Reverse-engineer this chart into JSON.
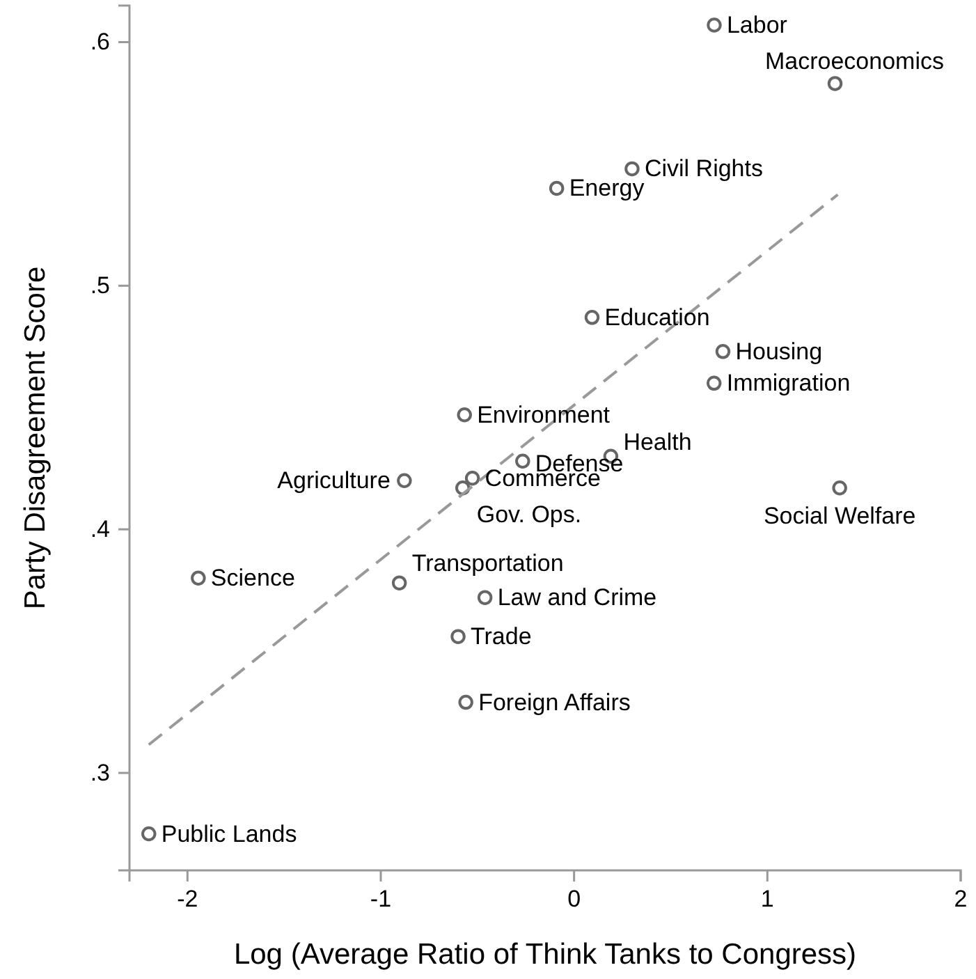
{
  "chart_data": {
    "type": "scatter",
    "xlabel": "Log (Average Ratio of Think Tanks to Congress)",
    "ylabel": "Party Disagreement Score",
    "xlim": [
      -2.3,
      2
    ],
    "ylim": [
      0.26,
      0.615
    ],
    "xticks": [
      -2,
      -1,
      0,
      1,
      2
    ],
    "yticks": [
      {
        "value": 0.3,
        "label": ".3"
      },
      {
        "value": 0.4,
        "label": ".4"
      },
      {
        "value": 0.5,
        "label": ".5"
      },
      {
        "value": 0.6,
        "label": ".6"
      }
    ],
    "grid": false,
    "series": [
      {
        "color": "#666666",
        "marker": "circle",
        "x": [
          0.725,
          1.35,
          0.3,
          -0.09,
          0.093,
          0.77,
          0.724,
          -0.567,
          0.19,
          -0.266,
          -0.526,
          -0.576,
          -0.878,
          1.374,
          -1.944,
          -0.904,
          -0.461,
          -0.6,
          -0.56,
          -2.2
        ],
        "values": [
          0.607,
          0.583,
          0.548,
          0.54,
          0.487,
          0.473,
          0.46,
          0.447,
          0.43,
          0.428,
          0.421,
          0.417,
          0.42,
          0.417,
          0.38,
          0.378,
          0.372,
          0.356,
          0.329,
          0.275
        ]
      },
      {
        "type": "line",
        "color": "#999999",
        "line_style": "dashed",
        "x": [
          -2.2,
          1.364
        ],
        "values": [
          0.3116,
          0.5374
        ]
      }
    ],
    "annotations": [
      {
        "text": "Labor",
        "x": 0.725,
        "y": 0.607
      },
      {
        "text": "Macroeconomics",
        "x": 1.35,
        "y": 0.583
      },
      {
        "text": "Civil Rights",
        "x": 0.3,
        "y": 0.548
      },
      {
        "text": "Energy",
        "x": -0.09,
        "y": 0.54
      },
      {
        "text": "Education",
        "x": 0.093,
        "y": 0.487
      },
      {
        "text": "Housing",
        "x": 0.77,
        "y": 0.473
      },
      {
        "text": "Immigration",
        "x": 0.724,
        "y": 0.46
      },
      {
        "text": "Environment",
        "x": -0.567,
        "y": 0.447
      },
      {
        "text": "Health",
        "x": 0.19,
        "y": 0.43
      },
      {
        "text": "Defense",
        "x": -0.266,
        "y": 0.428
      },
      {
        "text": "Commerce",
        "x": -0.526,
        "y": 0.421
      },
      {
        "text": "Gov. Ops.",
        "x": -0.576,
        "y": 0.417
      },
      {
        "text": "Agriculture",
        "x": -0.878,
        "y": 0.42
      },
      {
        "text": "Social Welfare",
        "x": 1.374,
        "y": 0.417
      },
      {
        "text": "Science",
        "x": -1.944,
        "y": 0.38
      },
      {
        "text": "Transportation",
        "x": -0.904,
        "y": 0.378
      },
      {
        "text": "Law and Crime",
        "x": -0.461,
        "y": 0.372
      },
      {
        "text": "Trade",
        "x": -0.6,
        "y": 0.356
      },
      {
        "text": "Foreign Affairs",
        "x": -0.56,
        "y": 0.329
      },
      {
        "text": "Public Lands",
        "x": -2.2,
        "y": 0.275
      }
    ]
  }
}
